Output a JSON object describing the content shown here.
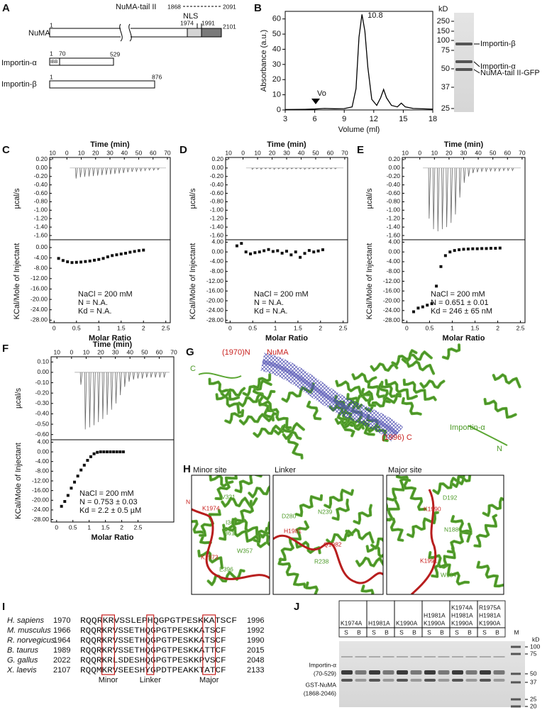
{
  "panel_labels": [
    "A",
    "B",
    "C",
    "D",
    "E",
    "F",
    "G",
    "H",
    "I",
    "J"
  ],
  "domains": {
    "tail_label": "NuMA-tail II",
    "tail_start": 1868,
    "tail_end": 2091,
    "nls": "NLS",
    "numa": "NuMA",
    "numa_positions": [
      1,
      1974,
      1991,
      2101
    ],
    "importin_a": "Importin-α",
    "importin_a_positions": [
      1,
      70,
      529
    ],
    "ibb": "IBB",
    "importin_b": "Importin-β",
    "importin_b_positions": [
      1,
      876
    ]
  },
  "gel_b": {
    "unit": "kD",
    "markers": [
      250,
      150,
      100,
      75,
      50,
      37,
      25
    ],
    "bands": [
      "Importin-β",
      "Importin-α",
      "NuMA-tail II-GFP"
    ]
  },
  "chart_data": [
    {
      "type": "line",
      "y_label": "Absorbance (a.u.)",
      "x_label": "Volume (ml)",
      "color": "#000000",
      "x": [
        3,
        5,
        6,
        7,
        8,
        9,
        9.8,
        10.2,
        10.5,
        10.8,
        11.1,
        11.4,
        11.8,
        12.3,
        12.7,
        13,
        13.3,
        13.8,
        14.4,
        14.8,
        15.2,
        16,
        18
      ],
      "values": [
        0.3,
        0.4,
        0.6,
        1,
        0.8,
        0.9,
        2,
        14,
        48,
        63,
        52,
        28,
        7,
        3,
        8,
        13.5,
        8,
        3,
        2,
        4.5,
        2,
        1,
        0.5
      ],
      "xlim": [
        3,
        18
      ],
      "xticks": [
        3,
        6,
        9,
        12,
        15,
        18
      ],
      "ylim": [
        0,
        65
      ],
      "yticks": [
        0,
        10,
        20,
        30,
        40,
        50,
        60
      ],
      "peak_label": 10.8,
      "void_label": "Vo"
    },
    {
      "type": "itc",
      "time_label": "Time (min)",
      "raw_label": "µcal/s",
      "y_label": "KCal/Mole of Injectant",
      "x_label": "Molar Ratio",
      "timelim": [
        -12,
        72
      ],
      "timeticks": [
        {
          "value": -10,
          "label": "10"
        },
        0,
        10,
        20,
        30,
        40,
        50,
        60,
        70
      ],
      "rawylim": [
        -1.7,
        0.25
      ],
      "rawyticks": [
        {
          "value": 0.2,
          "label": "0.20"
        },
        {
          "value": 0,
          "label": "0.00"
        },
        {
          "value": -0.2,
          "label": "-0.20"
        },
        {
          "value": -0.4,
          "label": "-0.40"
        },
        {
          "value": -0.6,
          "label": "-0.60"
        },
        {
          "value": -0.8,
          "label": "-0.80"
        },
        {
          "value": -1,
          "label": "-1.00"
        },
        {
          "value": -1.2,
          "label": "-1.20"
        },
        {
          "value": -1.4,
          "label": "-1.40"
        },
        {
          "value": -1.6,
          "label": "-1.60"
        }
      ],
      "injection_times": [
        6,
        9,
        12,
        15,
        18,
        21,
        24,
        27,
        30,
        33,
        36,
        39,
        42,
        45,
        48,
        51,
        54,
        57,
        60,
        63
      ],
      "peaks": [
        -0.25,
        -0.22,
        -0.21,
        -0.2,
        -0.19,
        -0.18,
        -0.17,
        -0.16,
        -0.15,
        -0.14,
        -0.13,
        -0.12,
        -0.1,
        -0.09,
        -0.08,
        -0.07,
        -0.06,
        -0.05,
        -0.05,
        -0.04
      ],
      "xlim": [
        -0.1,
        2.6
      ],
      "xticks": [
        0,
        0.5,
        1,
        1.5,
        2,
        2.5
      ],
      "ylim": [
        -29,
        3
      ],
      "yticks": [
        {
          "value": 0,
          "label": "0.00"
        },
        {
          "value": -4,
          "label": "-4.00"
        },
        {
          "value": -8,
          "label": "-8.00"
        },
        {
          "value": -12,
          "label": "-12.00"
        },
        {
          "value": -16,
          "label": "-16.00"
        },
        {
          "value": -20,
          "label": "-20.00"
        },
        {
          "value": -24,
          "label": "-24.00"
        },
        {
          "value": -28,
          "label": "-28.00"
        }
      ],
      "x": [
        0.1,
        0.2,
        0.3,
        0.4,
        0.5,
        0.6,
        0.7,
        0.8,
        0.9,
        1,
        1.1,
        1.2,
        1.3,
        1.4,
        1.5,
        1.6,
        1.7,
        1.8,
        1.9,
        2
      ],
      "values": [
        -4.2,
        -5,
        -5.5,
        -5.8,
        -5.7,
        -5.6,
        -5.4,
        -5.2,
        -4.9,
        -4.6,
        -4.2,
        -3.6,
        -3.1,
        -2.8,
        -2.5,
        -2.2,
        -1.8,
        -1.5,
        -1.2,
        -1
      ],
      "notes": [
        "NaCl = 200 mM",
        "N = N.A.",
        "Kd = N.A."
      ]
    },
    {
      "type": "itc",
      "time_label": "Time (min)",
      "raw_label": "µcal/s",
      "y_label": "KCal/Mole of Injectant",
      "x_label": "Molar Ratio",
      "timelim": [
        -12,
        72
      ],
      "timeticks": [
        {
          "value": -10,
          "label": "10"
        },
        0,
        10,
        20,
        30,
        40,
        50,
        60,
        70
      ],
      "rawylim": [
        -1.7,
        0.25
      ],
      "rawyticks": [
        {
          "value": 0.2,
          "label": "0.20"
        },
        {
          "value": 0,
          "label": "0.00"
        },
        {
          "value": -0.2,
          "label": "-0.20"
        },
        {
          "value": -0.4,
          "label": "-0.40"
        },
        {
          "value": -0.6,
          "label": "-0.60"
        },
        {
          "value": -0.8,
          "label": "-0.80"
        },
        {
          "value": -1,
          "label": "-1.00"
        },
        {
          "value": -1.2,
          "label": "-1.20"
        },
        {
          "value": -1.4,
          "label": "-1.40"
        },
        {
          "value": -1.6,
          "label": "-1.60"
        }
      ],
      "injection_times": [
        6,
        9,
        12,
        15,
        18,
        21,
        24,
        27,
        30,
        33,
        36,
        39,
        42,
        45,
        48,
        51,
        54,
        57,
        60,
        63
      ],
      "peaks": [
        -0.03,
        -0.02,
        -0.03,
        -0.02,
        -0.02,
        -0.03,
        -0.02,
        -0.02,
        -0.03,
        -0.02,
        -0.02,
        -0.02,
        -0.03,
        -0.02,
        -0.02,
        -0.02,
        -0.02,
        -0.02,
        -0.02,
        -0.02
      ],
      "xlim": [
        -0.1,
        2.6
      ],
      "xticks": [
        0,
        0.5,
        1,
        1.5,
        2,
        2.5
      ],
      "ylim": [
        -29,
        5
      ],
      "yticks": [
        {
          "value": 4,
          "label": "4.00"
        },
        {
          "value": 0,
          "label": "0.00"
        },
        {
          "value": -4,
          "label": "-4.00"
        },
        {
          "value": -8,
          "label": "-8.00"
        },
        {
          "value": -12,
          "label": "-12.00"
        },
        {
          "value": -16,
          "label": "-16.00"
        },
        {
          "value": -20,
          "label": "-20.00"
        },
        {
          "value": -24,
          "label": "-24.00"
        },
        {
          "value": -28,
          "label": "-28.00"
        }
      ],
      "x": [
        0.15,
        0.25,
        0.35,
        0.45,
        0.55,
        0.65,
        0.75,
        0.85,
        0.95,
        1.05,
        1.15,
        1.25,
        1.35,
        1.45,
        1.55,
        1.65,
        1.75,
        1.85,
        1.95,
        2.05
      ],
      "values": [
        2.5,
        3.5,
        0,
        -0.8,
        -0.3,
        0,
        0.5,
        1,
        0.2,
        0.5,
        -0.5,
        0.3,
        -1.2,
        0,
        -2.2,
        -0.6,
        0.6,
        0,
        0.4,
        0.9
      ],
      "notes": [
        "NaCl = 200 mM",
        "N = N.A.",
        "Kd = N.A."
      ]
    },
    {
      "type": "itc",
      "time_label": "Time (min)",
      "raw_label": "µcal/s",
      "y_label": "KCal/Mole of Injectant",
      "x_label": "Molar Ratio",
      "timelim": [
        -12,
        72
      ],
      "timeticks": [
        {
          "value": -10,
          "label": "10"
        },
        0,
        10,
        20,
        30,
        40,
        50,
        60,
        70
      ],
      "rawylim": [
        -1.7,
        0.25
      ],
      "rawyticks": [
        {
          "value": 0.2,
          "label": "0.20"
        },
        {
          "value": 0,
          "label": "0.00"
        },
        {
          "value": -0.2,
          "label": "-0.20"
        },
        {
          "value": -0.4,
          "label": "-0.40"
        },
        {
          "value": -0.6,
          "label": "-0.60"
        },
        {
          "value": -0.8,
          "label": "-0.80"
        },
        {
          "value": -1,
          "label": "-1.00"
        },
        {
          "value": -1.2,
          "label": "-1.20"
        },
        {
          "value": -1.4,
          "label": "-1.40"
        },
        {
          "value": -1.6,
          "label": "-1.60"
        }
      ],
      "injection_times": [
        6,
        9,
        12,
        15,
        18,
        21,
        24,
        27,
        30,
        33,
        36,
        39,
        42,
        45,
        48,
        51,
        54,
        57,
        60,
        63
      ],
      "peaks": [
        -1.2,
        -1.45,
        -1.5,
        -1.45,
        -1.4,
        -1.3,
        -1.1,
        -0.7,
        -0.35,
        -0.2,
        -0.12,
        -0.1,
        -0.08,
        -0.08,
        -0.07,
        -0.07,
        -0.07,
        -0.06,
        -0.06,
        -0.06
      ],
      "xlim": [
        -0.1,
        2.6
      ],
      "xticks": [
        0,
        0.5,
        1,
        1.5,
        2,
        2.5
      ],
      "ylim": [
        -29,
        5
      ],
      "yticks": [
        {
          "value": 4,
          "label": "4.00"
        },
        {
          "value": 0,
          "label": "0.00"
        },
        {
          "value": -4,
          "label": "-4.00"
        },
        {
          "value": -8,
          "label": "-8.00"
        },
        {
          "value": -12,
          "label": "-12.00"
        },
        {
          "value": -16,
          "label": "-16.00"
        },
        {
          "value": -20,
          "label": "-20.00"
        },
        {
          "value": -24,
          "label": "-24.00"
        },
        {
          "value": -28,
          "label": "-28.00"
        }
      ],
      "x": [
        0.15,
        0.25,
        0.35,
        0.45,
        0.55,
        0.65,
        0.75,
        0.85,
        0.95,
        1.05,
        1.15,
        1.25,
        1.35,
        1.45,
        1.55,
        1.65,
        1.75,
        1.85,
        1.95,
        2.05
      ],
      "values": [
        -24.5,
        -23,
        -22.5,
        -21.8,
        -21.2,
        -14,
        -6,
        -1.5,
        0,
        0.6,
        0.9,
        1.1,
        1.2,
        1.3,
        1.3,
        1.4,
        1.4,
        1.5,
        1.5,
        1.6
      ],
      "notes": [
        "NaCl = 200 mM",
        "N = 0.651 ± 0.01",
        "Kd = 246 ± 65 nM"
      ]
    },
    {
      "type": "itc",
      "time_label": "Time (min)",
      "raw_label": "µcal/s",
      "y_label": "KCal/Mole of Injectant",
      "x_label": "Molar Ratio",
      "timelim": [
        -14,
        70
      ],
      "timeticks": [
        {
          "value": -10,
          "label": "10"
        },
        0,
        10,
        20,
        30,
        40,
        50,
        60,
        70
      ],
      "rawylim": [
        -0.65,
        0.15
      ],
      "rawyticks": [
        {
          "value": 0.1,
          "label": "0.10"
        },
        {
          "value": 0,
          "label": "0.00"
        },
        {
          "value": -0.1,
          "label": "-0.10"
        },
        {
          "value": -0.2,
          "label": "-0.20"
        },
        {
          "value": -0.3,
          "label": "-0.30"
        },
        {
          "value": -0.4,
          "label": "-0.40"
        },
        {
          "value": -0.5,
          "label": "-0.50"
        },
        {
          "value": -0.6,
          "label": "-0.60"
        }
      ],
      "injection_times": [
        6,
        9,
        12,
        15,
        18,
        21,
        24,
        27,
        30,
        33,
        36,
        39,
        42,
        45,
        48,
        51,
        54,
        57,
        60,
        63
      ],
      "peaks": [
        -0.12,
        -0.55,
        -0.53,
        -0.51,
        -0.48,
        -0.45,
        -0.41,
        -0.36,
        -0.3,
        -0.22,
        -0.14,
        -0.09,
        -0.07,
        -0.06,
        -0.06,
        -0.05,
        -0.05,
        -0.05,
        -0.05,
        -0.05
      ],
      "xlim": [
        -0.17,
        3.6
      ],
      "xticks": [
        0,
        0.5,
        1,
        1.5,
        2,
        2.5
      ],
      "ylim": [
        -29,
        5
      ],
      "yticks": [
        {
          "value": 4,
          "label": "4.00"
        },
        {
          "value": 0,
          "label": "0.00"
        },
        {
          "value": -4,
          "label": "-4.00"
        },
        {
          "value": -8,
          "label": "-8.00"
        },
        {
          "value": -12,
          "label": "-12.00"
        },
        {
          "value": -16,
          "label": "-16.00"
        },
        {
          "value": -20,
          "label": "-20.00"
        },
        {
          "value": -24,
          "label": "-24.00"
        },
        {
          "value": -28,
          "label": "-28.00"
        }
      ],
      "x": [
        0.15,
        0.25,
        0.35,
        0.45,
        0.55,
        0.65,
        0.75,
        0.85,
        0.95,
        1.05,
        1.15,
        1.25,
        1.35,
        1.45,
        1.55,
        1.65,
        1.75,
        1.85,
        1.95,
        2.05
      ],
      "values": [
        -22.5,
        -20.5,
        -18,
        -15,
        -12.5,
        -10,
        -7.5,
        -5.5,
        -3.5,
        -2,
        -0.8,
        -0.2,
        0,
        0,
        0,
        0,
        0,
        0,
        0,
        0
      ],
      "notes": [
        "NaCl = 200 mM",
        "N = 0.753 ± 0.03",
        "Kd = 2.2 ± 0.5 µM"
      ]
    }
  ],
  "structure": {
    "n_term": "(1970)N",
    "numa": "NuMA",
    "c_label": "C",
    "importin": "Importin-α",
    "n_label": "N",
    "c_term": "(1996) C"
  },
  "sites": [
    {
      "title": "Minor site",
      "residues": [
        "N",
        "K1974",
        "V321",
        "I362",
        "I361",
        "W357",
        "K1973",
        "E396"
      ]
    },
    {
      "title": "Linker",
      "residues": [
        "D280",
        "N239",
        "H1981",
        "Q1982",
        "R238"
      ]
    },
    {
      "title": "Major site",
      "residues": [
        "D192",
        "K1990",
        "N188",
        "K1991",
        "W184"
      ]
    }
  ],
  "alignment": {
    "rows": [
      [
        "H. sapiens",
        1970,
        "RQQRKRVSSLEPHQGPGTPESKKATSCF",
        1996
      ],
      [
        "M. musculus",
        1966,
        "RQQRKRVSSETHQGPGTPESKKATSCF",
        1992
      ],
      [
        "R. norvegicus",
        1964,
        "RQQRKRVSSETHQGPGTPESKKATSCF",
        1990
      ],
      [
        "B. taurus",
        1989,
        "RQQRKRVSSETHQGPGTPESKKATTCF",
        2015
      ],
      [
        "G. gallus",
        2022,
        "RQQRKRLSDESHQGPGTPESKKPVSCF",
        2048
      ],
      [
        "X. laevis",
        2107,
        "RQQMKRVSEESHYGPDTPEAKKTATCF",
        2133
      ]
    ],
    "sites": [
      "Minor",
      "Linker",
      "Major"
    ]
  },
  "gel_j": {
    "constructs": [
      [
        "K1974A"
      ],
      [
        "H1981A"
      ],
      [
        "K1990A"
      ],
      [
        "H1981A",
        "K1990A"
      ],
      [
        "K1974A",
        "H1981A",
        "K1990A"
      ],
      [
        "R1975A",
        "H1981A",
        "K1990A"
      ]
    ],
    "fractions": [
      "S",
      "B"
    ],
    "marker": "M",
    "unit": "kD",
    "ladder": [
      100,
      75,
      50,
      37,
      25,
      20
    ],
    "bands": [
      [
        "Importin-α",
        "(70-529)"
      ],
      [
        "GST-NuMA",
        "(1868-2046)"
      ]
    ]
  }
}
